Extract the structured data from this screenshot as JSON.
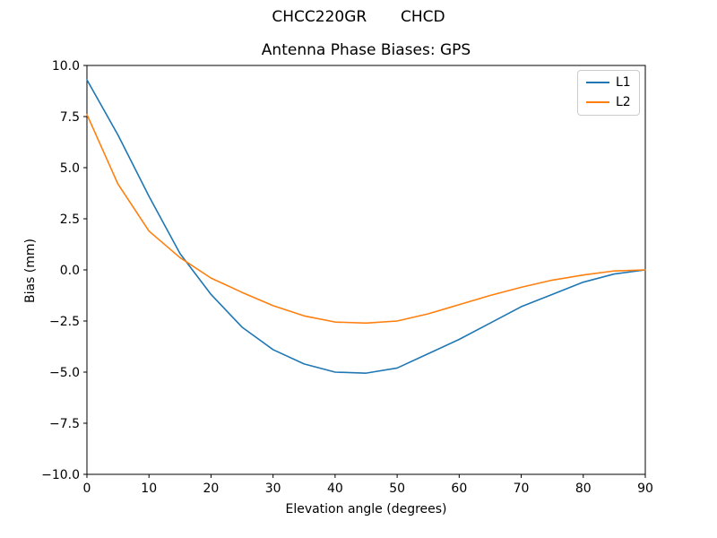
{
  "chart_data": {
    "type": "line",
    "suptitle": "CHCC220GR       CHCD",
    "title": "Antenna Phase Biases: GPS",
    "xlabel": "Elevation angle (degrees)",
    "ylabel": "Bias (mm)",
    "xlim": [
      0,
      90
    ],
    "ylim": [
      -10,
      10
    ],
    "grid": false,
    "legend_position": "upper right",
    "x": [
      0,
      5,
      10,
      15,
      20,
      25,
      30,
      35,
      40,
      45,
      50,
      55,
      60,
      65,
      70,
      75,
      80,
      85,
      90
    ],
    "series": [
      {
        "name": "L1",
        "color": "#1f77b4",
        "values": [
          9.3,
          6.6,
          3.6,
          0.8,
          -1.2,
          -2.8,
          -3.9,
          -4.6,
          -5.0,
          -5.05,
          -4.8,
          -4.1,
          -3.4,
          -2.6,
          -1.8,
          -1.2,
          -0.6,
          -0.2,
          0.0
        ]
      },
      {
        "name": "L2",
        "color": "#ff7f0e",
        "values": [
          7.6,
          4.2,
          1.9,
          0.6,
          -0.4,
          -1.1,
          -1.75,
          -2.25,
          -2.55,
          -2.6,
          -2.5,
          -2.15,
          -1.7,
          -1.25,
          -0.85,
          -0.5,
          -0.25,
          -0.05,
          0.0
        ]
      }
    ],
    "xticks": {
      "values": [
        0,
        10,
        20,
        30,
        40,
        50,
        60,
        70,
        80,
        90
      ],
      "labels": [
        "0",
        "10",
        "20",
        "30",
        "40",
        "50",
        "60",
        "70",
        "80",
        "90"
      ]
    },
    "yticks": {
      "values": [
        10,
        7.5,
        5,
        2.5,
        0,
        -2.5,
        -5,
        -7.5,
        -10
      ],
      "labels": [
        "10.0",
        "7.5",
        "5.0",
        "2.5",
        "0.0",
        "−2.5",
        "−5.0",
        "−7.5",
        "−10.0"
      ]
    }
  }
}
